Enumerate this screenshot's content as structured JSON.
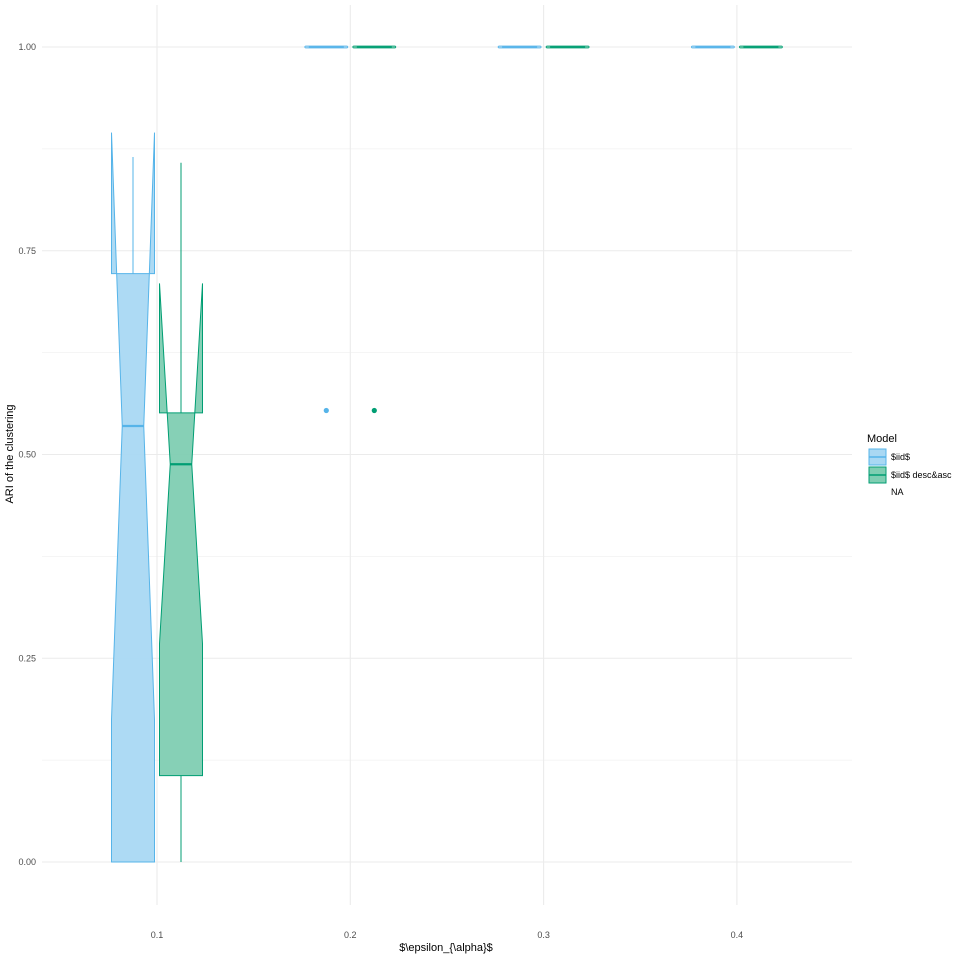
{
  "chart_data": {
    "type": "boxplot",
    "title": "",
    "xlabel": "$\\epsilon_{\\alpha}$",
    "ylabel": "ARI of the clustering",
    "x_ticks": [
      "0.1",
      "0.2",
      "0.3",
      "0.4"
    ],
    "y_ticks": [
      "0.00",
      "0.25",
      "0.50",
      "0.75",
      "1.00"
    ],
    "ylim": [
      -0.07,
      1.035
    ],
    "grid": true,
    "notched": true,
    "legend": {
      "title": "Model",
      "position": "right",
      "entries": [
        "$iid$",
        "$iid$ desc&asc",
        "NA"
      ]
    },
    "colors": {
      "iid_line": "#56B4E9",
      "iid_fill": "#A9D8F3",
      "desc_line": "#009E73",
      "desc_fill": "#7FCEB2",
      "grid": "#EBEBEB"
    },
    "series": [
      {
        "name": "$iid$",
        "boxes": [
          {
            "x": 0.1,
            "whisker_low": 0.0,
            "q1": 0.0,
            "median": 0.535,
            "q3": 0.722,
            "whisker_high": 0.865,
            "notch_low": 0.175,
            "notch_high": 0.895
          },
          {
            "x": 0.2,
            "whisker_low": 1.0,
            "q1": 1.0,
            "median": 1.0,
            "q3": 1.0,
            "whisker_high": 1.0,
            "outliers": [
              0.554
            ]
          },
          {
            "x": 0.3,
            "whisker_low": 1.0,
            "q1": 1.0,
            "median": 1.0,
            "q3": 1.0,
            "whisker_high": 1.0
          },
          {
            "x": 0.4,
            "whisker_low": 1.0,
            "q1": 1.0,
            "median": 1.0,
            "q3": 1.0,
            "whisker_high": 1.0
          }
        ]
      },
      {
        "name": "$iid$ desc&asc",
        "boxes": [
          {
            "x": 0.1,
            "whisker_low": 0.0,
            "q1": 0.106,
            "median": 0.488,
            "q3": 0.551,
            "whisker_high": 0.858,
            "notch_low": 0.268,
            "notch_high": 0.71
          },
          {
            "x": 0.2,
            "whisker_low": 1.0,
            "q1": 1.0,
            "median": 1.0,
            "q3": 1.0,
            "whisker_high": 1.0,
            "outliers": [
              0.554
            ]
          },
          {
            "x": 0.3,
            "whisker_low": 1.0,
            "q1": 1.0,
            "median": 1.0,
            "q3": 1.0,
            "whisker_high": 1.0
          },
          {
            "x": 0.4,
            "whisker_low": 1.0,
            "q1": 1.0,
            "median": 1.0,
            "q3": 1.0,
            "whisker_high": 1.0
          }
        ]
      }
    ]
  }
}
